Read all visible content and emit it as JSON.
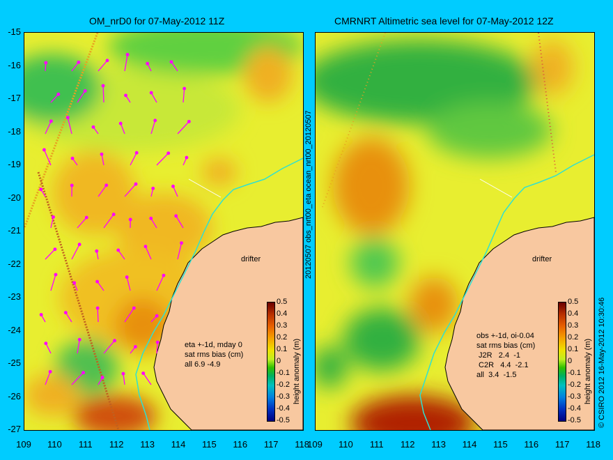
{
  "left": {
    "title": "OM_nrD0 for 07-May-2012 11Z",
    "stats": "eta +-1d, mday 0\nsat rms bias (cm)\nall 6.9 -4.9",
    "drifter": "drifter"
  },
  "right": {
    "title": "CMRNRT Altimetric sea level  for 07-May-2012 12Z",
    "stats": "obs +-1d, oi-0.04\nsat rms bias (cm)\n J2R   2.4  -1\n C2R   4.4  -2.1\nall  3.4  -1.5",
    "drifter": "drifter",
    "side_label": "20120507 obs_nrt00_eta     ocean_nrt00_20120507"
  },
  "y_ticks": [
    "-15",
    "-16",
    "-17",
    "-18",
    "-19",
    "-20",
    "-21",
    "-22",
    "-23",
    "-24",
    "-25",
    "-26",
    "-27"
  ],
  "x_ticks": [
    "109",
    "110",
    "111",
    "112",
    "113",
    "114",
    "115",
    "116",
    "117",
    "118"
  ],
  "colorbar": {
    "labels": [
      "0.5",
      "0.4",
      "0.3",
      "0.2",
      "0.1",
      "0",
      "-0.1",
      "-0.2",
      "-0.3",
      "-0.4",
      "-0.5"
    ],
    "title": "height anomaly (m)"
  },
  "copyright": "© CSIRO 2012  16-May-2012 10:30:46",
  "colors": {
    "background": "#00ccff",
    "land": "#f8c8a0",
    "coast": "#30e0d0",
    "vectors": "#ff00ff"
  }
}
